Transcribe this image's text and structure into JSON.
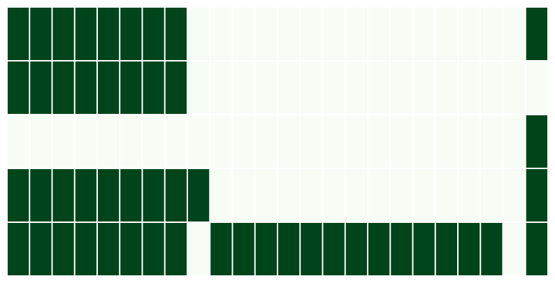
{
  "chart_data": {
    "type": "heatmap",
    "title": "",
    "xlabel": "",
    "ylabel": "",
    "rows": 5,
    "cols": 24,
    "values": [
      [
        1,
        1,
        1,
        1,
        1,
        1,
        1,
        1,
        0,
        0,
        0,
        0,
        0,
        0,
        0,
        0,
        0,
        0,
        0,
        0,
        0,
        0,
        0,
        1
      ],
      [
        1,
        1,
        1,
        1,
        1,
        1,
        1,
        1,
        0,
        0,
        0,
        0,
        0,
        0,
        0,
        0,
        0,
        0,
        0,
        0,
        0,
        0,
        0,
        0
      ],
      [
        0,
        0,
        0,
        0,
        0,
        0,
        0,
        0,
        0,
        0,
        0,
        0,
        0,
        0,
        0,
        0,
        0,
        0,
        0,
        0,
        0,
        0,
        0,
        1
      ],
      [
        1,
        1,
        1,
        1,
        1,
        1,
        1,
        1,
        1,
        0,
        0,
        0,
        0,
        0,
        0,
        0,
        0,
        0,
        0,
        0,
        0,
        0,
        0,
        1
      ],
      [
        1,
        1,
        1,
        1,
        1,
        1,
        1,
        1,
        0,
        1,
        1,
        1,
        1,
        1,
        1,
        1,
        1,
        1,
        1,
        1,
        1,
        1,
        0,
        1
      ]
    ],
    "color_scale": {
      "low": "#f7fcf5",
      "high": "#00441b"
    },
    "grid_line_color": "#ffffff",
    "colorbar": false,
    "legend": "none"
  }
}
